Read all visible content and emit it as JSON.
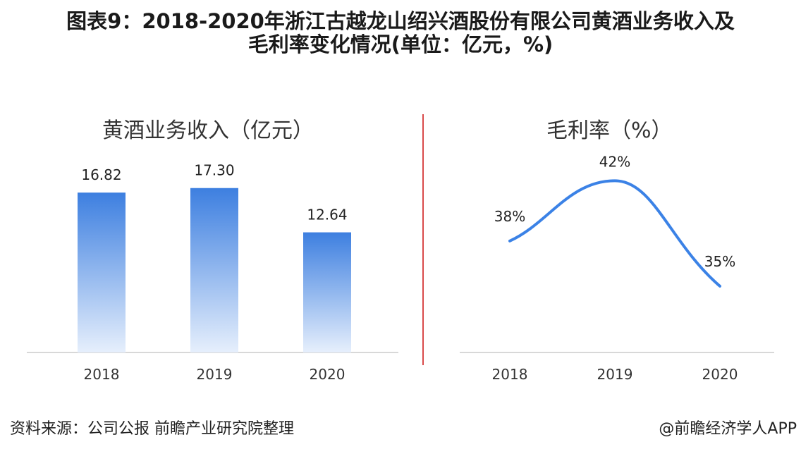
{
  "title": {
    "line1": "图表9：2018-2020年浙江古越龙山绍兴酒股份有限公司黄酒业务收入及",
    "line2": "毛利率变化情况(单位：亿元，%)"
  },
  "footer": {
    "source": "资料来源：公司公报 前瞻产业研究院整理",
    "credit": "@前瞻经济学人APP"
  },
  "colors": {
    "bar_top": "#3d7fe0",
    "bar_bottom": "#e6effc",
    "line": "#3b82e6",
    "divider": "#d94a4a"
  },
  "chart_data": [
    {
      "type": "bar",
      "title": "黄酒业务收入（亿元）",
      "categories": [
        "2018",
        "2019",
        "2020"
      ],
      "values": [
        16.82,
        17.3,
        12.64
      ],
      "labels": [
        "16.82",
        "17.30",
        "12.64"
      ],
      "ylim": [
        0,
        17.8
      ],
      "grid": false,
      "legend": "none"
    },
    {
      "type": "line",
      "title": "毛利率（%）",
      "categories": [
        "2018",
        "2019",
        "2020"
      ],
      "values": [
        38,
        42,
        35
      ],
      "labels": [
        "38%",
        "42%",
        "35%"
      ],
      "ylim": [
        32,
        43
      ],
      "grid": false,
      "legend": "none",
      "smooth": true
    }
  ]
}
